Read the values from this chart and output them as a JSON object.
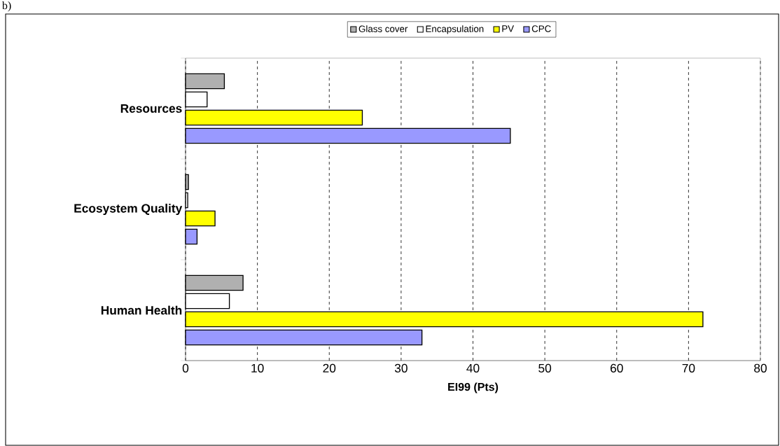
{
  "chart_data": {
    "type": "bar",
    "orientation": "horizontal",
    "annotations": [
      "b)"
    ],
    "categories": [
      "Resources",
      "Ecosystem Quality",
      "Human Health"
    ],
    "series": [
      {
        "name": "Glass cover",
        "color": "#b0b0b0",
        "values": [
          5.4,
          0.4,
          8.0
        ]
      },
      {
        "name": "Encapsulation",
        "color": "#ffffff",
        "values": [
          3.0,
          0.3,
          6.1
        ]
      },
      {
        "name": "PV",
        "color": "#ffff00",
        "values": [
          24.6,
          4.1,
          72.0
        ]
      },
      {
        "name": "CPC",
        "color": "#9999ff",
        "values": [
          45.2,
          1.6,
          32.9
        ]
      }
    ],
    "xlabel": "EI99 (Pts)",
    "xlim": [
      0,
      80
    ],
    "xticks": [
      0,
      10,
      20,
      30,
      40,
      50,
      60,
      70,
      80
    ],
    "grid": "x",
    "legend": "top"
  }
}
